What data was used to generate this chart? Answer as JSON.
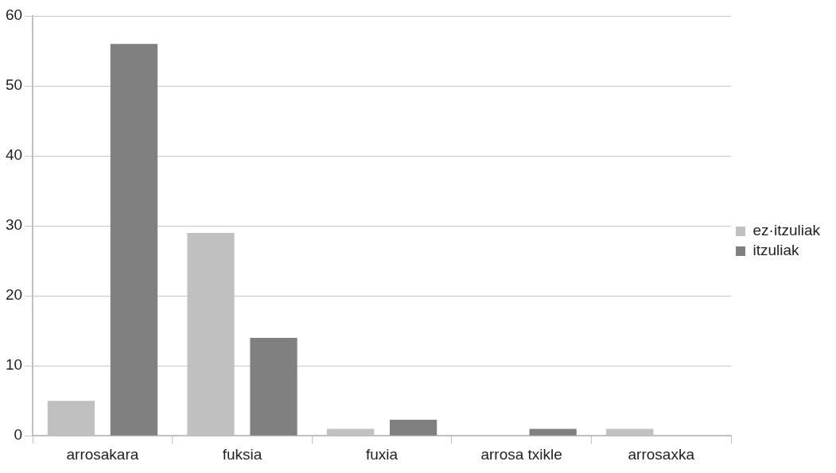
{
  "chart_data": {
    "type": "bar",
    "categories": [
      "arrosakara",
      "fuksia",
      "fuxia",
      "arrosa txikle",
      "arrosaxka"
    ],
    "series": [
      {
        "name": "ez·itzuliak",
        "color": "#c0c0c0",
        "values": [
          5,
          29,
          1,
          0,
          1
        ]
      },
      {
        "name": "itzuliak",
        "color": "#808080",
        "values": [
          56,
          14,
          2.3,
          1,
          0
        ]
      }
    ],
    "ylim": [
      0,
      60
    ],
    "yticks": [
      0,
      10,
      20,
      30,
      40,
      50,
      60
    ],
    "grid": "y",
    "legend": "right"
  }
}
